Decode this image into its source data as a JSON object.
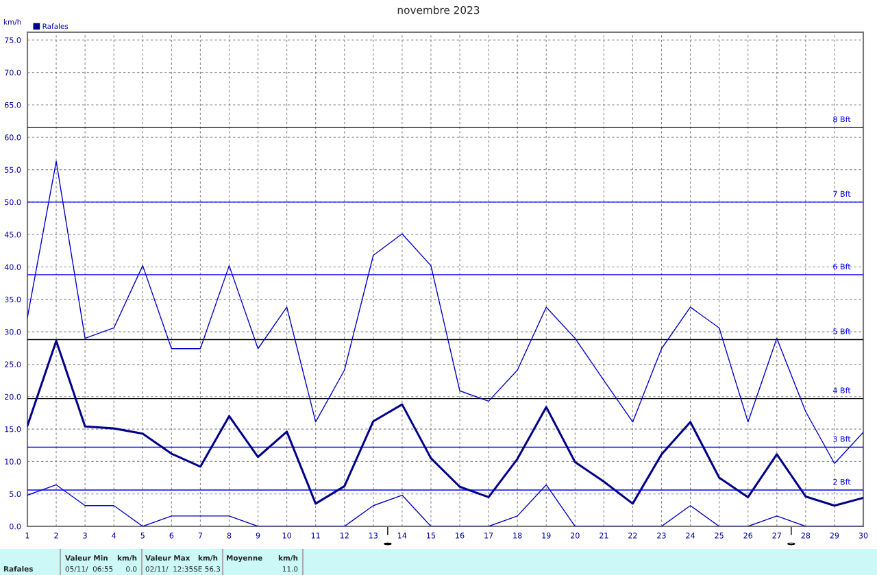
{
  "chart_data": {
    "type": "line",
    "title": "novembre 2023",
    "ylabel": "km/h",
    "x": [
      1,
      2,
      3,
      4,
      5,
      6,
      7,
      8,
      9,
      10,
      11,
      12,
      13,
      14,
      15,
      16,
      17,
      18,
      19,
      20,
      21,
      22,
      23,
      24,
      25,
      26,
      27,
      28,
      29,
      30
    ],
    "series": [
      {
        "color": "#0000cc",
        "values": [
          32.2,
          56.3,
          29.0,
          30.6,
          40.2,
          27.4,
          27.4,
          40.2,
          27.4,
          33.8,
          16.1,
          24.1,
          41.8,
          45.1,
          40.2,
          20.9,
          19.3,
          24.1,
          33.8,
          29.0,
          22.5,
          16.1,
          27.4,
          33.8,
          30.6,
          16.1,
          29.0,
          17.7,
          9.7,
          14.5
        ]
      },
      {
        "name": "Rafales",
        "color": "#00008b",
        "values": [
          15.5,
          28.6,
          15.4,
          15.1,
          14.3,
          11.2,
          9.2,
          17.0,
          10.7,
          14.6,
          3.5,
          6.2,
          16.2,
          18.8,
          10.5,
          6.1,
          4.5,
          10.4,
          18.4,
          9.9,
          6.9,
          3.5,
          11.1,
          16.1,
          7.5,
          4.5,
          11.1,
          4.6,
          3.2,
          4.4
        ]
      },
      {
        "color": "#0000cc",
        "values": [
          4.8,
          6.4,
          3.2,
          3.2,
          0,
          1.6,
          1.6,
          1.6,
          0,
          0,
          0,
          0,
          3.2,
          4.8,
          0,
          0,
          0,
          1.6,
          6.4,
          0,
          0,
          0,
          0,
          3.2,
          0,
          0,
          1.6,
          0,
          0,
          0
        ]
      }
    ],
    "xlim": [
      1,
      30
    ],
    "xticks": [
      1,
      2,
      3,
      4,
      5,
      6,
      7,
      8,
      9,
      10,
      11,
      12,
      13,
      14,
      15,
      16,
      17,
      18,
      19,
      20,
      21,
      22,
      23,
      24,
      25,
      26,
      27,
      28,
      29,
      30
    ],
    "ylim": [
      0,
      76.2
    ],
    "yticks": [
      {
        "value": 0,
        "label": "0.0"
      },
      {
        "value": 5,
        "label": "5.0"
      },
      {
        "value": 10,
        "label": "10.0"
      },
      {
        "value": 15,
        "label": "15.0"
      },
      {
        "value": 20,
        "label": "20.0"
      },
      {
        "value": 25,
        "label": "25.0"
      },
      {
        "value": 30,
        "label": "30.0"
      },
      {
        "value": 35,
        "label": "35.0"
      },
      {
        "value": 40,
        "label": "40.0"
      },
      {
        "value": 45,
        "label": "45.0"
      },
      {
        "value": 50,
        "label": "50.0"
      },
      {
        "value": 55,
        "label": "55.0"
      },
      {
        "value": 60,
        "label": "60.0"
      },
      {
        "value": 65,
        "label": "65.0"
      },
      {
        "value": 70,
        "label": "70.0"
      },
      {
        "value": 75,
        "label": "75.0"
      }
    ],
    "ref_lines": [
      {
        "axis": "y",
        "value": 61.5,
        "label": "8 Bft",
        "color": "#000000"
      },
      {
        "axis": "y",
        "value": 50.0,
        "label": "7 Bft",
        "color": "#0000ff"
      },
      {
        "axis": "y",
        "value": 38.8,
        "label": "6 Bft",
        "color": "#0000ff"
      },
      {
        "axis": "y",
        "value": 28.8,
        "label": "5 Bft",
        "color": "#000000"
      },
      {
        "axis": "y",
        "value": 19.7,
        "label": "4 Bft",
        "color": "#000000"
      },
      {
        "axis": "y",
        "value": 12.2,
        "label": "3 Bft",
        "color": "#0000ff"
      },
      {
        "axis": "y",
        "value": 5.6,
        "label": "2 Bft",
        "color": "#0000ff"
      }
    ],
    "grid": true,
    "legend": "top left",
    "marker": "none",
    "line_style": "solid",
    "annotations": [
      "Rafales",
      "Valeur Min",
      "km/h",
      "05/11/  06:55",
      "0.0",
      "Valeur Max",
      "km/h",
      "02/11/  12:35SE 56.3",
      "Moyenne",
      "km/h",
      "11.0"
    ]
  }
}
